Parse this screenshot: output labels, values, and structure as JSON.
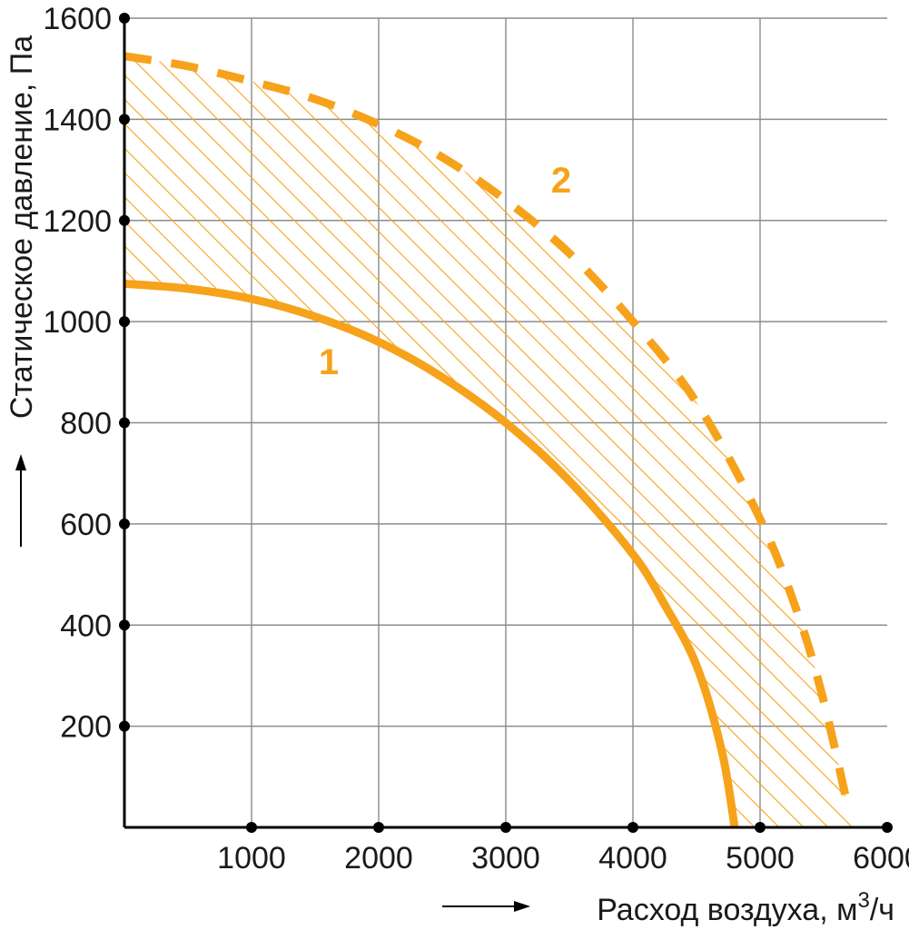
{
  "chart_data": {
    "type": "line",
    "xlabel": "Расход воздуха, м",
    "xlabel_sup": "3",
    "xlabel_suffix": "/ч",
    "ylabel": "Статическое давление, Па",
    "xlim": [
      0,
      6000
    ],
    "ylim": [
      0,
      1600
    ],
    "x_ticks": [
      1000,
      2000,
      3000,
      4000,
      5000,
      6000
    ],
    "y_ticks": [
      200,
      400,
      600,
      800,
      1000,
      1200,
      1400,
      1600
    ],
    "grid": true,
    "color": "#F7A21B",
    "fill_between_series": "hatched",
    "series": [
      {
        "name": "1",
        "style": "solid",
        "points": [
          [
            0,
            1075
          ],
          [
            500,
            1065
          ],
          [
            1000,
            1045
          ],
          [
            1500,
            1010
          ],
          [
            2000,
            960
          ],
          [
            2500,
            890
          ],
          [
            3000,
            800
          ],
          [
            3500,
            685
          ],
          [
            4000,
            540
          ],
          [
            4250,
            440
          ],
          [
            4500,
            320
          ],
          [
            4700,
            150
          ],
          [
            4800,
            0
          ]
        ]
      },
      {
        "name": "2",
        "style": "dashed",
        "points": [
          [
            0,
            1525
          ],
          [
            500,
            1505
          ],
          [
            1000,
            1475
          ],
          [
            1500,
            1440
          ],
          [
            2000,
            1390
          ],
          [
            2500,
            1325
          ],
          [
            3000,
            1240
          ],
          [
            3500,
            1135
          ],
          [
            4000,
            1000
          ],
          [
            4500,
            840
          ],
          [
            5000,
            610
          ],
          [
            5300,
            420
          ],
          [
            5500,
            250
          ],
          [
            5700,
            30
          ]
        ]
      }
    ]
  }
}
